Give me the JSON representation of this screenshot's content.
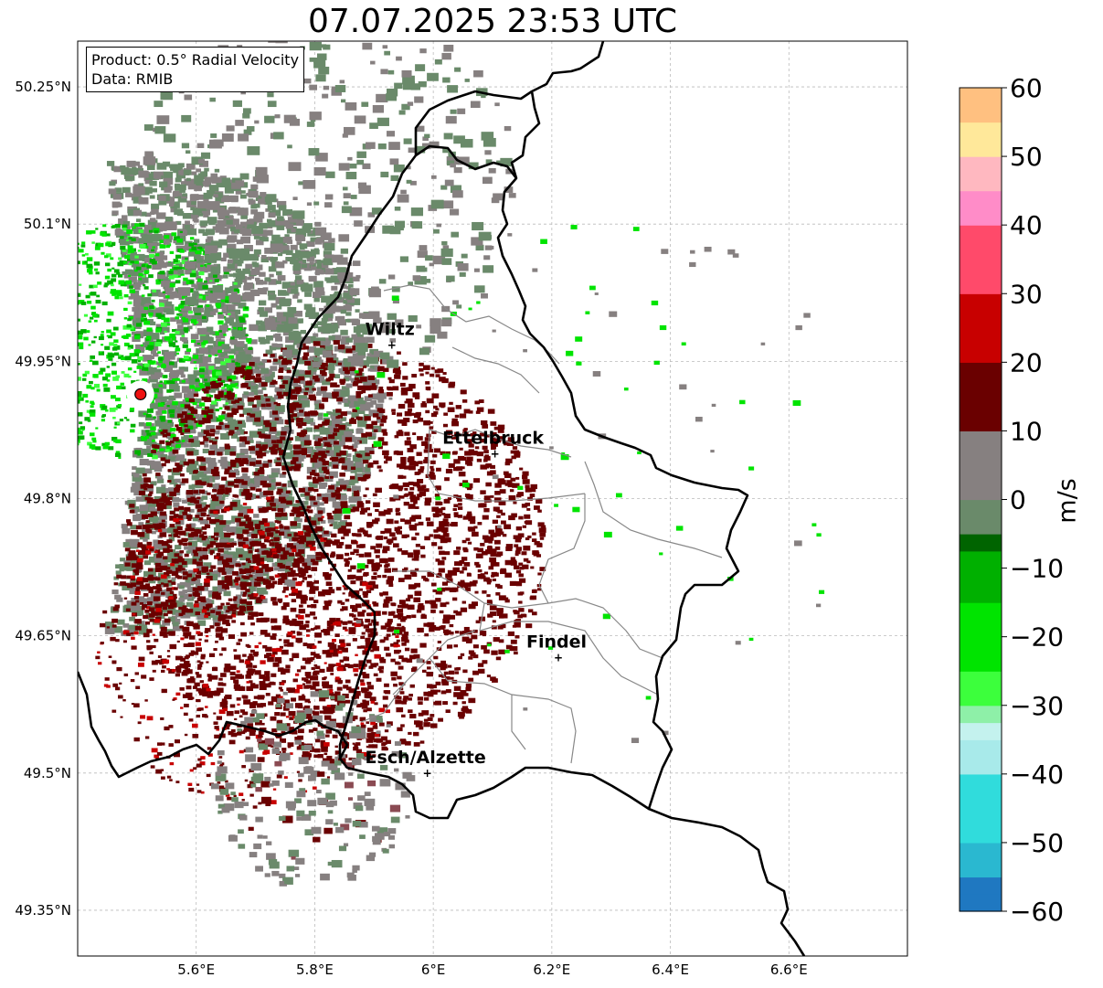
{
  "title": "07.07.2025 23:53 UTC",
  "info": {
    "product": "Product: 0.5° Radial Velocity",
    "source": "Data: RMIB"
  },
  "map": {
    "lon_range": [
      5.4,
      6.8
    ],
    "lat_range": [
      49.3,
      50.3
    ],
    "lon_ticks": [
      {
        "value": 5.6,
        "label": "5.6°E"
      },
      {
        "value": 5.8,
        "label": "5.8°E"
      },
      {
        "value": 6.0,
        "label": "6°E"
      },
      {
        "value": 6.2,
        "label": "6.2°E"
      },
      {
        "value": 6.4,
        "label": "6.4°E"
      },
      {
        "value": 6.6,
        "label": "6.6°E"
      }
    ],
    "lat_ticks": [
      {
        "value": 49.35,
        "label": "49.35°N"
      },
      {
        "value": 49.5,
        "label": "49.5°N"
      },
      {
        "value": 49.65,
        "label": "49.65°N"
      },
      {
        "value": 49.8,
        "label": "49.8°N"
      },
      {
        "value": 49.95,
        "label": "49.95°N"
      },
      {
        "value": 50.1,
        "label": "50.1°N"
      },
      {
        "value": 50.25,
        "label": "50.25°N"
      }
    ],
    "cities": [
      {
        "name": "Wiltz",
        "lon": 5.93,
        "lat": 49.968
      },
      {
        "name": "Ettelbruck",
        "lon": 6.104,
        "lat": 49.849
      },
      {
        "name": "Findel",
        "lon": 6.211,
        "lat": 49.626
      },
      {
        "name": "Esch/Alzette",
        "lon": 5.99,
        "lat": 49.5
      }
    ],
    "radar_site": {
      "lon": 5.506,
      "lat": 49.914
    },
    "colorbar": {
      "label": "m/s",
      "min": -60,
      "max": 60,
      "ticks": [
        -60,
        -50,
        -40,
        -30,
        -20,
        -10,
        0,
        10,
        20,
        30,
        40,
        50,
        60
      ],
      "tick_labels": [
        "−60",
        "−50",
        "−40",
        "−30",
        "−20",
        "−10",
        "0",
        "10",
        "20",
        "30",
        "40",
        "50",
        "60"
      ],
      "stops": [
        {
          "v": -60,
          "color": "#1f78c1"
        },
        {
          "v": -55,
          "color": "#2ab8d0"
        },
        {
          "v": -50,
          "color": "#30dcdc"
        },
        {
          "v": -40,
          "color": "#a8eaea"
        },
        {
          "v": -35,
          "color": "#c4f2ee"
        },
        {
          "v": -34,
          "color": "#8ef0a8"
        },
        {
          "v": -30,
          "color": "#3cff3c"
        },
        {
          "v": -25,
          "color": "#00e400"
        },
        {
          "v": -15,
          "color": "#00b000"
        },
        {
          "v": -8,
          "color": "#006400"
        },
        {
          "v": -7,
          "color": "#6a8a6a"
        },
        {
          "v": 0,
          "color": "#868080"
        },
        {
          "v": 8,
          "color": "#8a4a52"
        },
        {
          "v": 9,
          "color": "#6a0000"
        },
        {
          "v": 20,
          "color": "#c80000"
        },
        {
          "v": 28,
          "color": "#ff0000"
        },
        {
          "v": 29,
          "color": "#ff4a6a"
        },
        {
          "v": 40,
          "color": "#ff8cc8"
        },
        {
          "v": 44,
          "color": "#ffb8c0"
        },
        {
          "v": 50,
          "color": "#ffe89a"
        },
        {
          "v": 55,
          "color": "#ffc080"
        },
        {
          "v": 60,
          "color": "#ff9a50"
        }
      ]
    }
  }
}
